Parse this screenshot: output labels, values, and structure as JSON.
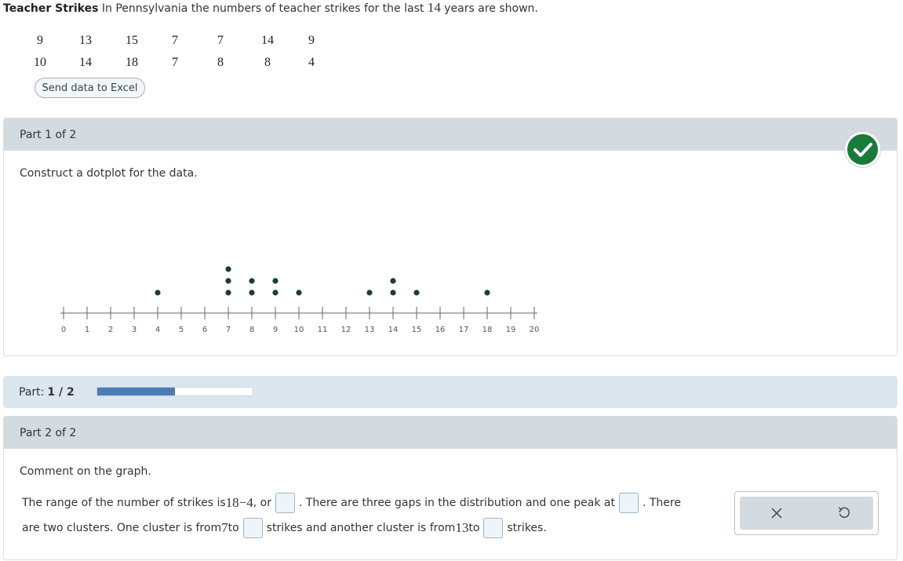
{
  "problem": {
    "title_bold": "Teacher Strikes",
    "title_text": " In Pennsylvania the numbers of teacher strikes for the last ",
    "title_num": "14",
    "title_end": " years are shown."
  },
  "data_rows": [
    [
      "9",
      "13",
      "15",
      "7",
      "7",
      "14",
      "9"
    ],
    [
      "10",
      "14",
      "18",
      "7",
      "8",
      "8",
      "4"
    ]
  ],
  "excel_button": "Send data to Excel",
  "part1": {
    "header": "Part 1 of 2",
    "instruction": "Construct a dotplot for the data.",
    "status_icon": "check-icon",
    "status_color": "#1a7a3a"
  },
  "chart_data": {
    "type": "scatter",
    "kind": "dotplot",
    "x_ticks": [
      "0",
      "1",
      "2",
      "3",
      "4",
      "5",
      "6",
      "7",
      "8",
      "9",
      "10",
      "11",
      "12",
      "13",
      "14",
      "15",
      "16",
      "17",
      "18",
      "19",
      "20"
    ],
    "xlim": [
      0,
      20
    ],
    "values": [
      9,
      13,
      15,
      7,
      7,
      14,
      9,
      10,
      14,
      18,
      7,
      8,
      8,
      4
    ],
    "counts": {
      "4": 1,
      "7": 3,
      "8": 2,
      "9": 2,
      "10": 1,
      "13": 1,
      "14": 2,
      "15": 1,
      "18": 1
    },
    "dot_color": "#1e3a40"
  },
  "progress": {
    "label": "Part:",
    "value": "1 / 2",
    "fraction": 0.5,
    "fill_color": "#4a7db8"
  },
  "part2": {
    "header": "Part 2 of 2",
    "instruction": "Comment on the graph.",
    "s1_a": "The range of the number of strikes is ",
    "s1_expr": "18−4",
    "s1_b": ", or",
    "s1_c": ". There are three gaps in the distribution and one peak at",
    "s1_d": ". There",
    "s2_a": "are two clusters. One cluster is from ",
    "s2_n1": "7",
    "s2_b": " to",
    "s2_c": "strikes and another cluster is from ",
    "s2_n2": "13",
    "s2_d": " to",
    "s2_e": "strikes."
  },
  "tools": {
    "clear_icon": "close-icon",
    "undo_icon": "undo-icon"
  }
}
